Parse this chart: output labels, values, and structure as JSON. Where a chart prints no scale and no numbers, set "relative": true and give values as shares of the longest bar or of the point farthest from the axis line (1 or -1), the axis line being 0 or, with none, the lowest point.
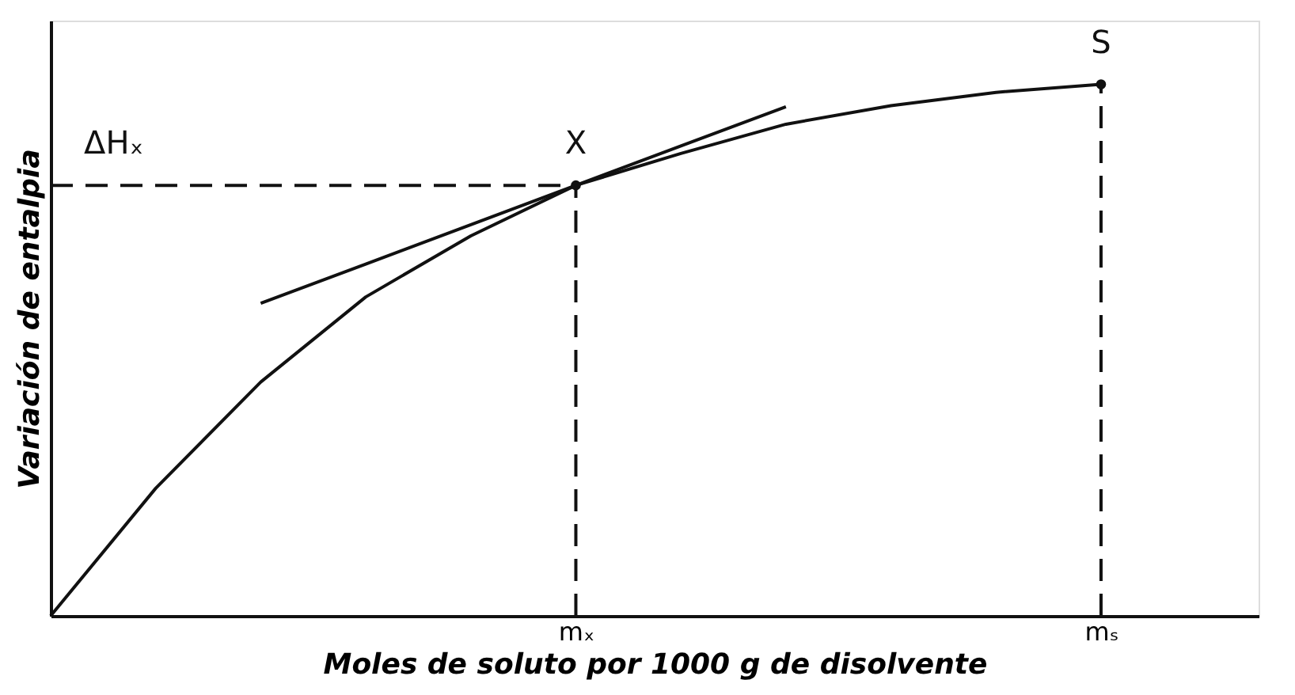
{
  "chart_data": {
    "type": "line",
    "relative": true,
    "xlabel": "Moles de soluto por 1000 g de disolvente",
    "ylabel": "Variación de entalpia",
    "categories": [
      null,
      null,
      null,
      null,
      null,
      "mₓ",
      null,
      null,
      null,
      null,
      "mₛ"
    ],
    "series": [
      {
        "color": "#111111",
        "values": [
          0,
          0.24,
          0.44,
          0.6,
          0.715,
          0.81,
          0.87,
          0.925,
          0.96,
          0.985,
          1.0
        ],
        "line_style": "solid"
      },
      {
        "color": "#111111",
        "values": [
          null,
          null,
          0.588,
          0.662,
          0.736,
          0.81,
          0.884,
          0.958,
          null,
          null,
          null
        ],
        "line_style": "solid"
      },
      {
        "color": "#111111",
        "values": [
          0.81,
          0.81,
          0.81,
          0.81,
          0.81,
          0.81,
          null,
          null,
          null,
          null,
          null
        ],
        "line_style": "dashed"
      },
      {
        "type": "lollipop",
        "marker": "circle",
        "color": "#111111",
        "values": [
          null,
          null,
          null,
          null,
          null,
          0.81,
          null,
          null,
          null,
          null,
          1.0
        ],
        "line_style": "dashed"
      }
    ],
    "annotations": [
      {
        "text": "ΔHₓ",
        "y": 0.81
      },
      {
        "text": "X",
        "x": "mₓ",
        "y": 0.81
      },
      {
        "text": "S",
        "x": "mₛ",
        "y": 1.0
      }
    ],
    "grid": false,
    "marker": "none"
  }
}
